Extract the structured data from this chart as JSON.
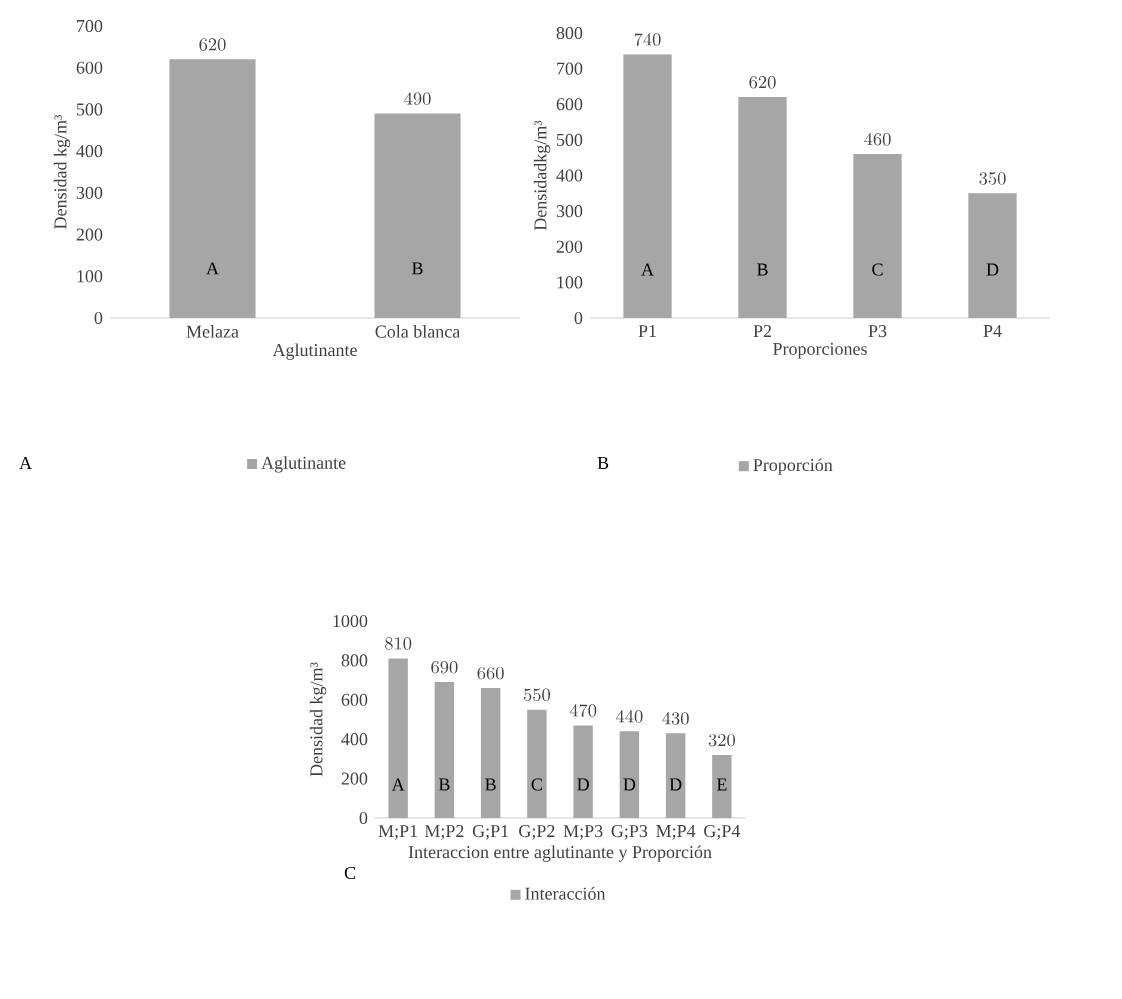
{
  "chart_data": [
    {
      "type": "bar",
      "categories": [
        "Melaza",
        "Cola blanca"
      ],
      "series": [
        {
          "name": "Aglutinante",
          "color": "#a6a6a6",
          "values": [
            620,
            490
          ]
        }
      ],
      "xlabel": "Aglutinante",
      "ylabel": "Densidad kg/m³",
      "ylim": [
        0,
        700
      ],
      "yticks": [
        0,
        100,
        200,
        300,
        400,
        500,
        600,
        700
      ],
      "data_labels": true,
      "legend": "bottom",
      "annotations": [
        "A",
        "A",
        "B"
      ]
    },
    {
      "type": "bar",
      "categories": [
        "P1",
        "P2",
        "P3",
        "P4"
      ],
      "series": [
        {
          "name": "Proporción",
          "color": "#a6a6a6",
          "values": [
            740,
            620,
            460,
            350
          ]
        }
      ],
      "xlabel": "Proporciones",
      "ylabel": "Densidadkg/m³",
      "ylim": [
        0,
        800
      ],
      "yticks": [
        0,
        100,
        200,
        300,
        400,
        500,
        600,
        700,
        800
      ],
      "data_labels": true,
      "legend": "bottom",
      "annotations": [
        "B",
        "A",
        "B",
        "C",
        "D"
      ]
    },
    {
      "type": "bar",
      "categories": [
        "M;P1",
        "M;P2",
        "G;P1",
        "G;P2",
        "M;P3",
        "G;P3",
        "M;P4",
        "G;P4"
      ],
      "series": [
        {
          "name": "Interacción",
          "color": "#a6a6a6",
          "values": [
            810,
            690,
            660,
            550,
            470,
            440,
            430,
            320
          ]
        }
      ],
      "xlabel": "Interaccion entre aglutinante y Proporción",
      "ylabel": "Densidad kg/m³",
      "ylim": [
        0,
        1000
      ],
      "yticks": [
        0,
        200,
        400,
        600,
        800,
        1000
      ],
      "data_labels": true,
      "legend": "bottom",
      "annotations": [
        "C",
        "A",
        "B",
        "B",
        "C",
        "D",
        "D",
        "D",
        "E"
      ]
    }
  ]
}
